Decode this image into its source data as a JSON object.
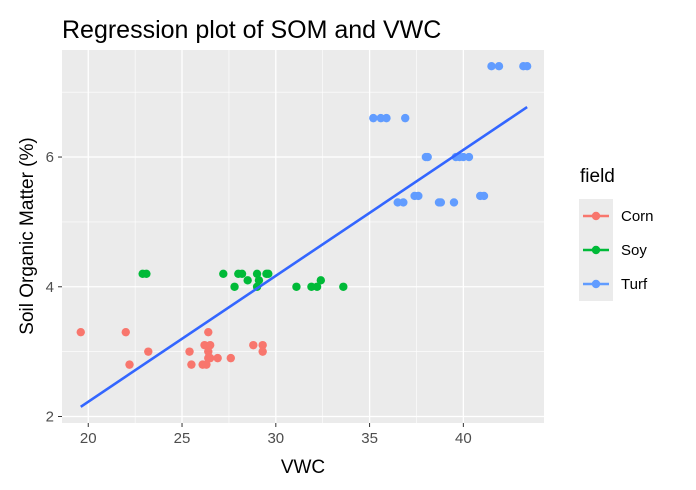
{
  "chart_data": {
    "type": "scatter",
    "title": "Regression plot of SOM and VWC",
    "xlabel": "VWC",
    "ylabel": "Soil Organic Matter (%)",
    "xlim": [
      18.6,
      44.3
    ],
    "ylim": [
      1.9,
      7.65
    ],
    "xticks": [
      20,
      25,
      30,
      35,
      40
    ],
    "yticks": [
      2,
      4,
      6
    ],
    "grid": true,
    "legend": {
      "title": "field",
      "position": "right"
    },
    "series": [
      {
        "name": "Corn",
        "color": "#F8766D",
        "points": [
          [
            19.6,
            3.3
          ],
          [
            22.0,
            3.3
          ],
          [
            22.2,
            2.8
          ],
          [
            23.2,
            3.0
          ],
          [
            25.4,
            3.0
          ],
          [
            25.5,
            2.8
          ],
          [
            26.1,
            2.8
          ],
          [
            26.2,
            3.1
          ],
          [
            26.3,
            2.8
          ],
          [
            26.4,
            3.0
          ],
          [
            26.4,
            2.9
          ],
          [
            26.4,
            3.3
          ],
          [
            26.5,
            3.1
          ],
          [
            26.5,
            2.9
          ],
          [
            26.9,
            2.9
          ],
          [
            27.6,
            2.9
          ],
          [
            28.8,
            3.1
          ],
          [
            29.3,
            3.1
          ],
          [
            29.3,
            3.0
          ]
        ]
      },
      {
        "name": "Soy",
        "color": "#00BA38",
        "points": [
          [
            22.9,
            4.2
          ],
          [
            23.1,
            4.2
          ],
          [
            27.2,
            4.2
          ],
          [
            27.8,
            4.0
          ],
          [
            28.0,
            4.2
          ],
          [
            28.2,
            4.2
          ],
          [
            28.5,
            4.1
          ],
          [
            29.0,
            4.2
          ],
          [
            29.0,
            4.0
          ],
          [
            29.1,
            4.1
          ],
          [
            29.5,
            4.2
          ],
          [
            29.6,
            4.2
          ],
          [
            31.1,
            4.0
          ],
          [
            31.9,
            4.0
          ],
          [
            32.2,
            4.0
          ],
          [
            32.4,
            4.1
          ],
          [
            33.6,
            4.0
          ]
        ]
      },
      {
        "name": "Turf",
        "color": "#619CFF",
        "points": [
          [
            35.2,
            6.6
          ],
          [
            35.6,
            6.6
          ],
          [
            35.9,
            6.6
          ],
          [
            36.5,
            5.3
          ],
          [
            36.8,
            5.3
          ],
          [
            36.9,
            6.6
          ],
          [
            37.4,
            5.4
          ],
          [
            37.6,
            5.4
          ],
          [
            38.0,
            6.0
          ],
          [
            38.1,
            6.0
          ],
          [
            38.7,
            5.3
          ],
          [
            38.8,
            5.3
          ],
          [
            39.5,
            5.3
          ],
          [
            39.6,
            6.0
          ],
          [
            39.8,
            6.0
          ],
          [
            40.0,
            6.0
          ],
          [
            40.3,
            6.0
          ],
          [
            40.9,
            5.4
          ],
          [
            41.1,
            5.4
          ],
          [
            41.5,
            7.4
          ],
          [
            41.9,
            7.4
          ],
          [
            43.2,
            7.4
          ],
          [
            43.4,
            7.4
          ]
        ]
      }
    ],
    "regression": {
      "color": "#3366FF",
      "x": [
        19.6,
        43.4
      ],
      "y": [
        2.15,
        6.77
      ]
    },
    "colors": {
      "panel_bg": "#EBEBEB",
      "grid_major": "#FFFFFF",
      "legend_key_bg": "#EBEBEB"
    }
  }
}
